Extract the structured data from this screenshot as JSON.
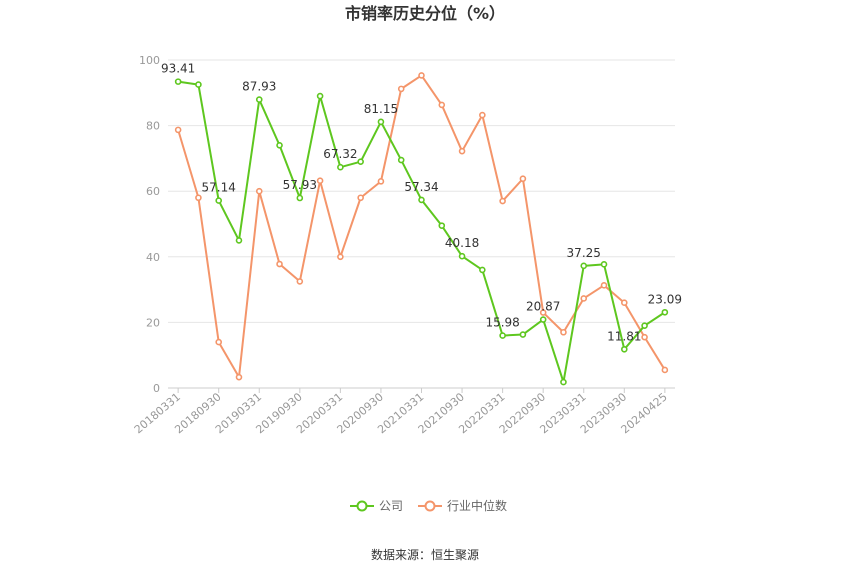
{
  "chart_data": {
    "type": "line",
    "title": "市销率历史分位（%）",
    "ylim": [
      0,
      100
    ],
    "yticks": [
      0,
      20,
      40,
      60,
      80,
      100
    ],
    "x": [
      "20180331",
      "20180630",
      "20180930",
      "20181231",
      "20190331",
      "20190630",
      "20190930",
      "20191231",
      "20200331",
      "20200630",
      "20200930",
      "20201231",
      "20210331",
      "20210630",
      "20210930",
      "20211231",
      "20220331",
      "20220630",
      "20220930",
      "20221231",
      "20230331",
      "20230630",
      "20230930",
      "20231231",
      "20240425"
    ],
    "xticks_shown": [
      "20180331",
      "20180930",
      "20190331",
      "20190930",
      "20200331",
      "20200930",
      "20210331",
      "20210930",
      "20220331",
      "20220930",
      "20230331",
      "20230930",
      "20240425"
    ],
    "series": [
      {
        "name": "公司",
        "color": "#5ec71f",
        "values": [
          93.41,
          92.5,
          57.14,
          45.0,
          87.93,
          74.0,
          57.93,
          89.0,
          67.32,
          69.0,
          81.15,
          69.5,
          57.34,
          49.5,
          40.18,
          36.0,
          15.98,
          16.3,
          20.87,
          1.8,
          37.25,
          37.7,
          11.81,
          19.0,
          23.09
        ],
        "labels": {
          "0": "93.41",
          "2": "57.14",
          "4": "87.93",
          "6": "57.93",
          "8": "67.32",
          "10": "81.15",
          "12": "57.34",
          "14": "40.18",
          "16": "15.98",
          "18": "20.87",
          "20": "37.25",
          "22": "11.81",
          "24": "23.09"
        }
      },
      {
        "name": "行业中位数",
        "color": "#f4956a",
        "values": [
          78.7,
          58.0,
          14.0,
          3.3,
          60.0,
          37.8,
          32.5,
          63.2,
          40.0,
          58.0,
          63.0,
          91.2,
          95.3,
          86.3,
          72.2,
          83.2,
          57.0,
          63.8,
          23.0,
          17.0,
          27.3,
          31.3,
          26.0,
          15.5,
          5.5
        ]
      }
    ],
    "legend_position": "bottom-center",
    "grid": true
  },
  "footer": {
    "source": "数据来源：恒生聚源"
  }
}
